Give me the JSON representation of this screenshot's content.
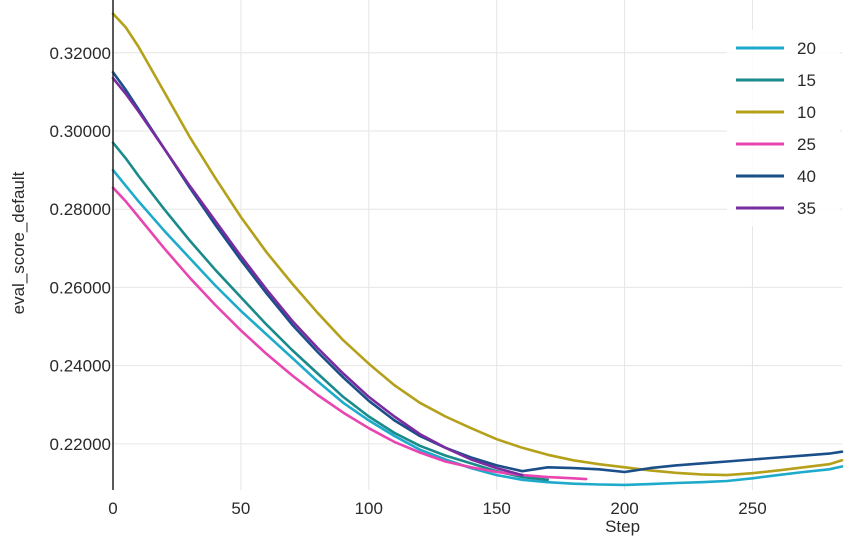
{
  "chart_data": {
    "type": "line",
    "title": "",
    "xlabel": "Step",
    "ylabel": "eval_score_default",
    "xlim": [
      0,
      285
    ],
    "ylim": [
      0.2082,
      0.3335
    ],
    "x_ticks": [
      0,
      50,
      100,
      150,
      200,
      250
    ],
    "x_tick_labels": [
      "0",
      "50",
      "100",
      "150",
      "200",
      "250"
    ],
    "y_ticks": [
      0.22,
      0.24,
      0.26,
      0.28,
      0.3,
      0.32
    ],
    "y_tick_labels": [
      "0.22000",
      "0.24000",
      "0.26000",
      "0.28000",
      "0.30000",
      "0.32000"
    ],
    "grid": true,
    "legend_position": "top-right",
    "series": [
      {
        "name": "20",
        "color": "#1eaacb",
        "x": [
          0,
          5,
          10,
          20,
          30,
          40,
          50,
          60,
          70,
          80,
          90,
          100,
          110,
          120,
          130,
          140,
          150,
          160,
          170,
          180,
          190,
          200,
          210,
          220,
          230,
          240,
          250,
          260,
          270,
          280,
          285
        ],
        "y": [
          0.29,
          0.286,
          0.282,
          0.2745,
          0.2675,
          0.2605,
          0.254,
          0.248,
          0.242,
          0.236,
          0.2305,
          0.226,
          0.222,
          0.2185,
          0.216,
          0.2138,
          0.212,
          0.2108,
          0.2102,
          0.2098,
          0.2096,
          0.2095,
          0.2097,
          0.21,
          0.2102,
          0.2105,
          0.2112,
          0.212,
          0.2128,
          0.2135,
          0.2142
        ]
      },
      {
        "name": "15",
        "color": "#1a8a8a",
        "x": [
          0,
          5,
          10,
          20,
          30,
          40,
          50,
          60,
          70,
          80,
          90,
          100,
          110,
          120,
          130,
          140,
          150,
          160,
          170
        ],
        "y": [
          0.297,
          0.293,
          0.2885,
          0.28,
          0.272,
          0.2645,
          0.2575,
          0.2505,
          0.244,
          0.238,
          0.232,
          0.227,
          0.2228,
          0.2195,
          0.217,
          0.215,
          0.213,
          0.2115,
          0.2108
        ]
      },
      {
        "name": "10",
        "color": "#b5a01a",
        "x": [
          0,
          5,
          10,
          20,
          30,
          40,
          50,
          60,
          70,
          80,
          90,
          100,
          110,
          120,
          130,
          140,
          150,
          160,
          170,
          180,
          190,
          200,
          210,
          220,
          230,
          240,
          250,
          260,
          270,
          280,
          285
        ],
        "y": [
          0.33,
          0.3265,
          0.3215,
          0.31,
          0.2985,
          0.288,
          0.278,
          0.269,
          0.261,
          0.2535,
          0.2465,
          0.2405,
          0.235,
          0.2305,
          0.227,
          0.224,
          0.2212,
          0.219,
          0.2172,
          0.2158,
          0.2148,
          0.214,
          0.2132,
          0.2126,
          0.2122,
          0.212,
          0.2125,
          0.2132,
          0.214,
          0.2148,
          0.2158
        ]
      },
      {
        "name": "25",
        "color": "#e845b0",
        "x": [
          0,
          5,
          10,
          20,
          30,
          40,
          50,
          60,
          70,
          80,
          90,
          100,
          110,
          120,
          130,
          140,
          150,
          160,
          170,
          180,
          185
        ],
        "y": [
          0.2855,
          0.282,
          0.278,
          0.27,
          0.2625,
          0.2555,
          0.249,
          0.243,
          0.2375,
          0.2325,
          0.228,
          0.224,
          0.2205,
          0.2178,
          0.2155,
          0.214,
          0.2128,
          0.212,
          0.2115,
          0.2112,
          0.211
        ]
      },
      {
        "name": "40",
        "color": "#1a4f8a",
        "x": [
          0,
          5,
          10,
          20,
          30,
          40,
          50,
          60,
          70,
          80,
          90,
          100,
          110,
          120,
          130,
          140,
          150,
          160,
          170,
          180,
          190,
          200,
          210,
          220,
          230,
          240,
          250,
          260,
          270,
          280,
          285
        ],
        "y": [
          0.315,
          0.3105,
          0.3055,
          0.2955,
          0.2855,
          0.276,
          0.267,
          0.2585,
          0.2505,
          0.2435,
          0.237,
          0.231,
          0.226,
          0.222,
          0.219,
          0.2165,
          0.2145,
          0.213,
          0.214,
          0.2138,
          0.2135,
          0.2128,
          0.2138,
          0.2145,
          0.215,
          0.2155,
          0.216,
          0.2165,
          0.217,
          0.2175,
          0.218
        ]
      },
      {
        "name": "35",
        "color": "#7a2ba0",
        "x": [
          0,
          5,
          10,
          20,
          30,
          40,
          50,
          60,
          70,
          80,
          90,
          100,
          110,
          120,
          130,
          140,
          150,
          160
        ],
        "y": [
          0.3135,
          0.3095,
          0.305,
          0.2955,
          0.286,
          0.277,
          0.268,
          0.2595,
          0.2515,
          0.2445,
          0.238,
          0.232,
          0.227,
          0.2225,
          0.219,
          0.216,
          0.2138,
          0.212
        ]
      }
    ]
  }
}
